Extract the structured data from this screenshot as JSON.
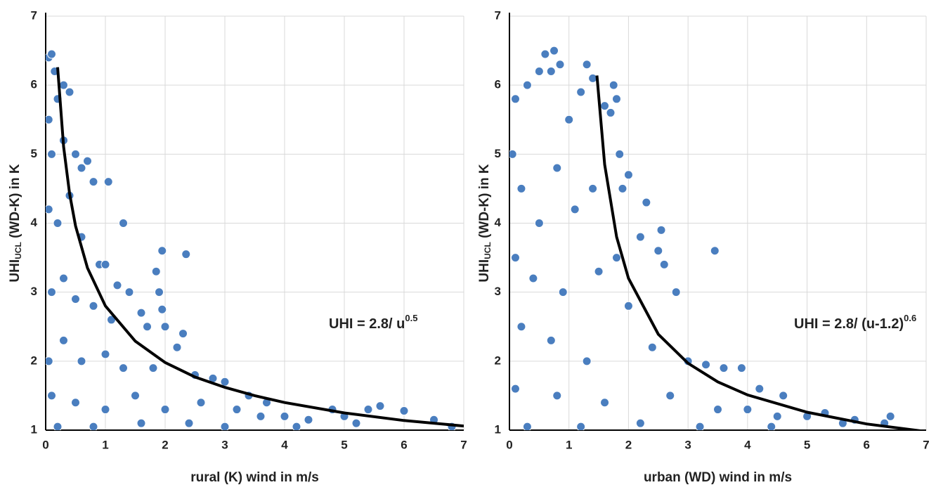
{
  "chart_data": [
    {
      "type": "scatter",
      "x_label": "rural (K) wind in m/s",
      "y_label": {
        "text": "UHI",
        "subscript": "UCL",
        "suffix": " (WD-K) in K"
      },
      "annotation": {
        "text": "UHI = 2.8/ u",
        "superscript": "0.5"
      },
      "xlim": [
        0,
        7
      ],
      "ylim": [
        1,
        7
      ],
      "xticks": [
        0,
        1,
        2,
        3,
        4,
        5,
        6,
        7
      ],
      "yticks": [
        1,
        2,
        3,
        4,
        5,
        6,
        7
      ],
      "grid": true,
      "series": [
        {
          "color": "#4a7ebf",
          "x": [
            0.05,
            0.1,
            0.15,
            0.05,
            0.1,
            0.2,
            0.3,
            0.4,
            0.3,
            0.5,
            0.6,
            0.7,
            0.8,
            1.05,
            1.3,
            0.05,
            0.2,
            0.4,
            0.6,
            0.9,
            1.0,
            1.2,
            1.4,
            0.1,
            0.3,
            0.5,
            0.8,
            1.1,
            1.6,
            1.7,
            1.85,
            1.95,
            1.9,
            1.95,
            2.0,
            2.3,
            2.35,
            2.2,
            0.05,
            0.3,
            0.6,
            1.0,
            1.3,
            1.8,
            2.5,
            2.8,
            3.0,
            3.4,
            3.7,
            0.1,
            0.5,
            1.0,
            1.5,
            2.0,
            2.6,
            3.2,
            3.6,
            4.0,
            4.4,
            4.8,
            5.0,
            5.4,
            5.6,
            6.0,
            6.5,
            0.2,
            0.8,
            1.6,
            2.4,
            3.0,
            4.2,
            5.2,
            6.8
          ],
          "values": [
            6.4,
            6.45,
            6.2,
            5.5,
            5.0,
            5.8,
            6.0,
            5.9,
            5.2,
            5.0,
            4.8,
            4.9,
            4.6,
            4.6,
            4.0,
            4.2,
            4.0,
            4.4,
            3.8,
            3.4,
            3.4,
            3.1,
            3.0,
            3.0,
            3.2,
            2.9,
            2.8,
            2.6,
            2.7,
            2.5,
            3.3,
            3.6,
            3.0,
            2.75,
            2.5,
            2.4,
            3.55,
            2.2,
            2.0,
            2.3,
            2.0,
            2.1,
            1.9,
            1.9,
            1.8,
            1.75,
            1.7,
            1.5,
            1.4,
            1.5,
            1.4,
            1.3,
            1.5,
            1.3,
            1.4,
            1.3,
            1.2,
            1.2,
            1.15,
            1.3,
            1.2,
            1.3,
            1.35,
            1.28,
            1.15,
            1.05,
            1.05,
            1.1,
            1.1,
            1.05,
            1.05,
            1.1,
            1.05
          ]
        },
        {
          "type": "line",
          "color": "#000000",
          "x": [
            0.2,
            0.3,
            0.4,
            0.5,
            0.7,
            1,
            1.5,
            2,
            2.5,
            3,
            3.5,
            4,
            5,
            6,
            7
          ],
          "values": [
            6.26,
            5.11,
            4.43,
            3.96,
            3.35,
            2.8,
            2.29,
            1.98,
            1.77,
            1.62,
            1.5,
            1.4,
            1.25,
            1.14,
            1.06
          ]
        }
      ]
    },
    {
      "type": "scatter",
      "x_label": "urban (WD) wind in m/s",
      "y_label": {
        "text": "UHI",
        "subscript": "UCL",
        "suffix": " (WD-K) in K"
      },
      "annotation": {
        "text": "UHI = 2.8/ (u-1.2)",
        "superscript": "0.6"
      },
      "xlim": [
        0,
        7
      ],
      "ylim": [
        1,
        7
      ],
      "xticks": [
        0,
        1,
        2,
        3,
        4,
        5,
        6,
        7
      ],
      "yticks": [
        1,
        2,
        3,
        4,
        5,
        6,
        7
      ],
      "grid": true,
      "series": [
        {
          "color": "#4a7ebf",
          "x": [
            0.1,
            0.3,
            0.5,
            0.6,
            0.7,
            0.75,
            0.85,
            1.0,
            1.3,
            1.4,
            1.75,
            1.8,
            1.7,
            1.6,
            1.2,
            1.85,
            2.0,
            1.9,
            2.3,
            2.55,
            2.6,
            2.8,
            2.5,
            2.2,
            3.45,
            0.05,
            0.2,
            0.5,
            0.8,
            1.1,
            1.4,
            0.1,
            0.4,
            0.9,
            1.5,
            1.8,
            2.0,
            0.2,
            0.7,
            1.3,
            2.4,
            3.0,
            3.3,
            3.6,
            3.9,
            4.2,
            4.6,
            0.1,
            0.8,
            1.6,
            2.7,
            3.5,
            4.0,
            4.5,
            5.0,
            5.3,
            5.8,
            6.4,
            0.3,
            1.2,
            2.2,
            3.2,
            4.4,
            5.6,
            6.3
          ],
          "values": [
            5.8,
            6.0,
            6.2,
            6.45,
            6.2,
            6.5,
            6.3,
            5.5,
            6.3,
            6.1,
            6.0,
            5.8,
            5.6,
            5.7,
            5.9,
            5.0,
            4.7,
            4.5,
            4.3,
            3.9,
            3.4,
            3.0,
            3.6,
            3.8,
            3.6,
            5.0,
            4.5,
            4.0,
            4.8,
            4.2,
            4.5,
            3.5,
            3.2,
            3.0,
            3.3,
            3.5,
            2.8,
            2.5,
            2.3,
            2.0,
            2.2,
            2.0,
            1.95,
            1.9,
            1.9,
            1.6,
            1.5,
            1.6,
            1.5,
            1.4,
            1.5,
            1.3,
            1.3,
            1.2,
            1.2,
            1.25,
            1.15,
            1.2,
            1.05,
            1.05,
            1.1,
            1.05,
            1.05,
            1.1,
            1.1
          ]
        },
        {
          "type": "line",
          "color": "#000000",
          "x": [
            1.47,
            1.6,
            1.8,
            2,
            2.5,
            3,
            3.5,
            4,
            5,
            6,
            7
          ],
          "values": [
            6.14,
            4.85,
            3.8,
            3.2,
            2.39,
            1.97,
            1.7,
            1.51,
            1.26,
            1.09,
            0.98
          ]
        }
      ]
    }
  ]
}
